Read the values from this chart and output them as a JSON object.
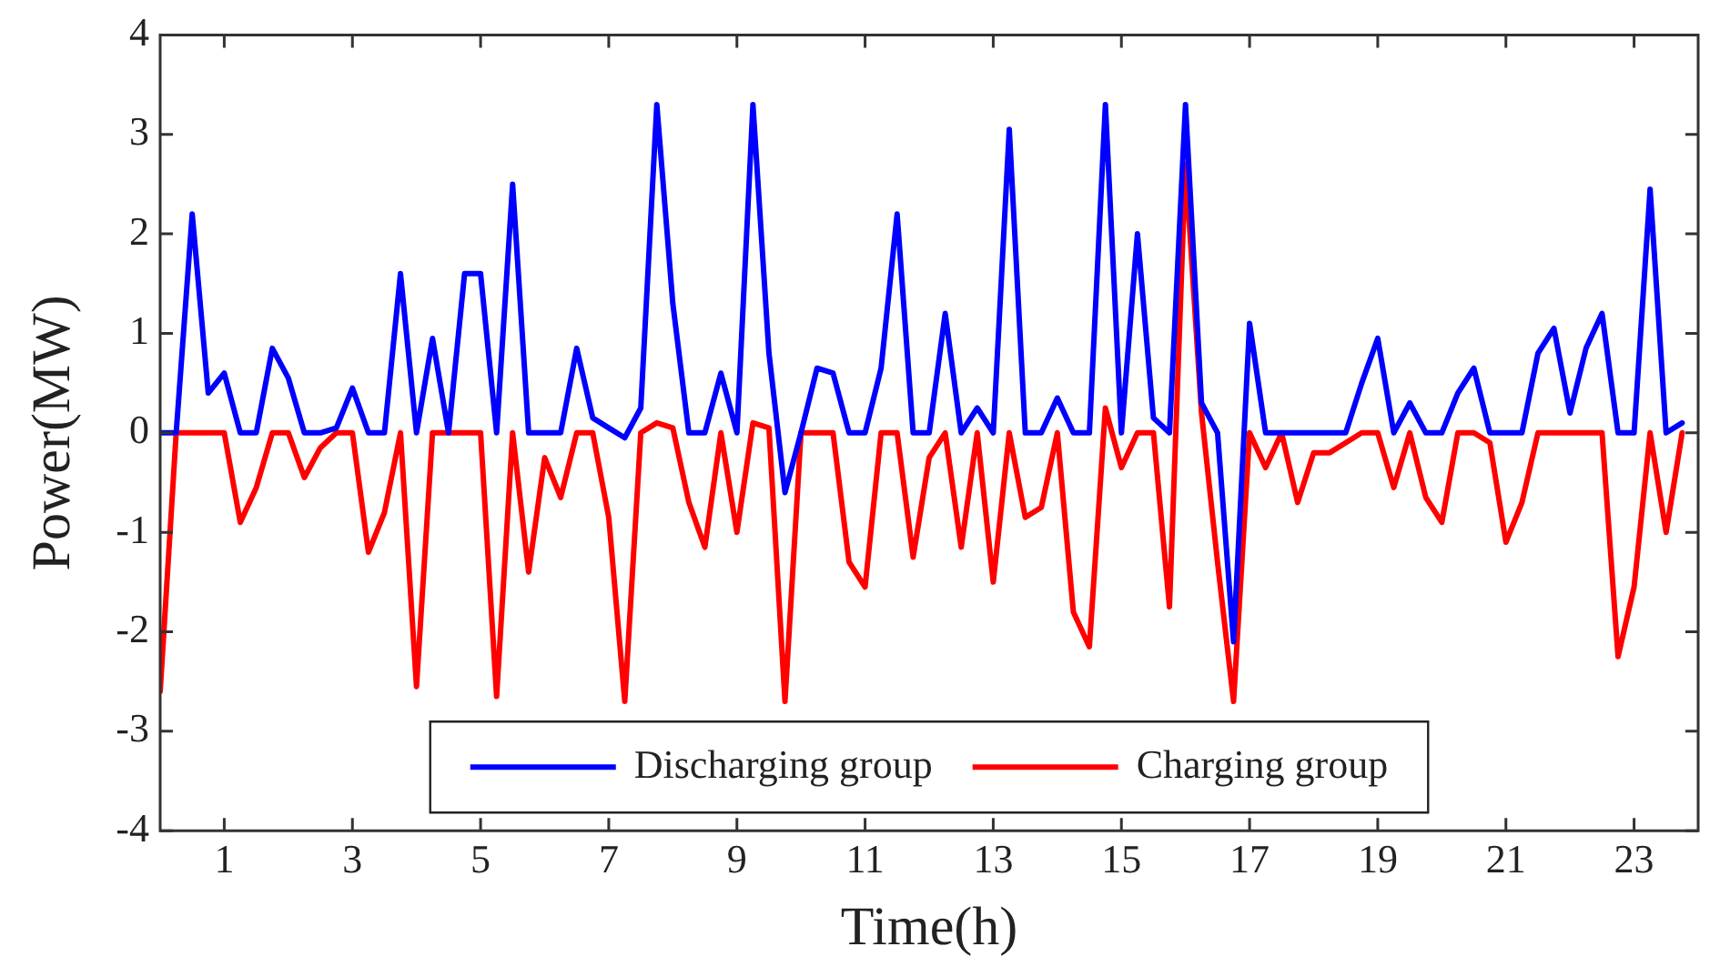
{
  "chart_data": {
    "type": "line",
    "xlabel": "Time(h)",
    "ylabel": "Power(MW)",
    "x": [
      0,
      0.25,
      0.5,
      0.75,
      1,
      1.25,
      1.5,
      1.75,
      2,
      2.25,
      2.5,
      2.75,
      3,
      3.25,
      3.5,
      3.75,
      4,
      4.25,
      4.5,
      4.75,
      5,
      5.25,
      5.5,
      5.75,
      6,
      6.25,
      6.5,
      6.75,
      7,
      7.25,
      7.5,
      7.75,
      8,
      8.25,
      8.5,
      8.75,
      9,
      9.25,
      9.5,
      9.75,
      10,
      10.25,
      10.5,
      10.75,
      11,
      11.25,
      11.5,
      11.75,
      12,
      12.25,
      12.5,
      12.75,
      13,
      13.25,
      13.5,
      13.75,
      14,
      14.25,
      14.5,
      14.75,
      15,
      15.25,
      15.5,
      15.75,
      16,
      16.25,
      16.5,
      16.75,
      17,
      17.25,
      17.5,
      17.75,
      18,
      18.25,
      18.5,
      18.75,
      19,
      19.25,
      19.5,
      19.75,
      20,
      20.25,
      20.5,
      20.75,
      21,
      21.25,
      21.5,
      21.75,
      22,
      22.25,
      22.5,
      22.75,
      23,
      23.25,
      23.5,
      23.75
    ],
    "series": [
      {
        "name": "Discharging group",
        "color": "#0000ff",
        "values": [
          0,
          0,
          2.2,
          0.4,
          0.6,
          0,
          0,
          0.85,
          0.55,
          0,
          0,
          0.05,
          0.45,
          0,
          0,
          1.6,
          0,
          0.95,
          0,
          1.6,
          1.6,
          0,
          2.5,
          0,
          0,
          0,
          0.85,
          0.15,
          0.05,
          -0.05,
          0.25,
          3.3,
          1.3,
          0,
          0,
          0.6,
          0,
          3.3,
          0.8,
          -0.6,
          0,
          0.65,
          0.6,
          0,
          0,
          0.65,
          2.2,
          0,
          0,
          1.2,
          0,
          0.25,
          0,
          3.05,
          0,
          0,
          0.35,
          0,
          0,
          3.3,
          0,
          2,
          0.15,
          0,
          3.3,
          0.3,
          0,
          -2.1,
          1.1,
          0,
          0,
          0,
          0,
          0,
          0,
          0.5,
          0.95,
          0,
          0.3,
          0,
          0,
          0.4,
          0.65,
          0,
          0,
          0,
          0.8,
          1.05,
          0.2,
          0.85,
          1.2,
          0,
          0,
          2.45,
          0,
          0.1
        ]
      },
      {
        "name": "Charging group",
        "color": "#ff0000",
        "values": [
          -2.6,
          0,
          0,
          0,
          0,
          -0.9,
          -0.55,
          0,
          0,
          -0.45,
          -0.15,
          0,
          0,
          -1.2,
          -0.8,
          0,
          -2.55,
          0,
          0,
          0,
          0,
          -2.65,
          0,
          -1.4,
          -0.25,
          -0.65,
          0,
          0,
          -0.85,
          -2.7,
          0,
          0.1,
          0.05,
          -0.7,
          -1.15,
          0,
          -1,
          0.1,
          0.05,
          -2.7,
          0,
          0,
          0,
          -1.3,
          -1.55,
          0,
          0,
          -1.25,
          -0.25,
          0,
          -1.15,
          0,
          -1.5,
          0,
          -0.85,
          -0.75,
          0,
          -1.8,
          -2.15,
          0.25,
          -0.35,
          0,
          0,
          -1.75,
          2.7,
          0.2,
          -1.3,
          -2.7,
          0,
          -0.35,
          0,
          -0.7,
          -0.2,
          -0.2,
          -0.1,
          0,
          0,
          -0.55,
          0,
          -0.65,
          -0.9,
          0,
          0,
          -0.1,
          -1.1,
          -0.7,
          0,
          0,
          0,
          0,
          0,
          -2.25,
          -1.55,
          0,
          -1,
          0
        ]
      }
    ],
    "xlim": [
      0,
      24
    ],
    "xticks": [
      1,
      3,
      5,
      7,
      9,
      11,
      13,
      15,
      17,
      19,
      21,
      23
    ],
    "ylim": [
      -4,
      4
    ],
    "yticks": [
      -4,
      -3,
      -2,
      -1,
      0,
      1,
      2,
      3,
      4
    ],
    "grid": false,
    "legend": "bottom",
    "marker": "none",
    "line_style": "solid"
  }
}
